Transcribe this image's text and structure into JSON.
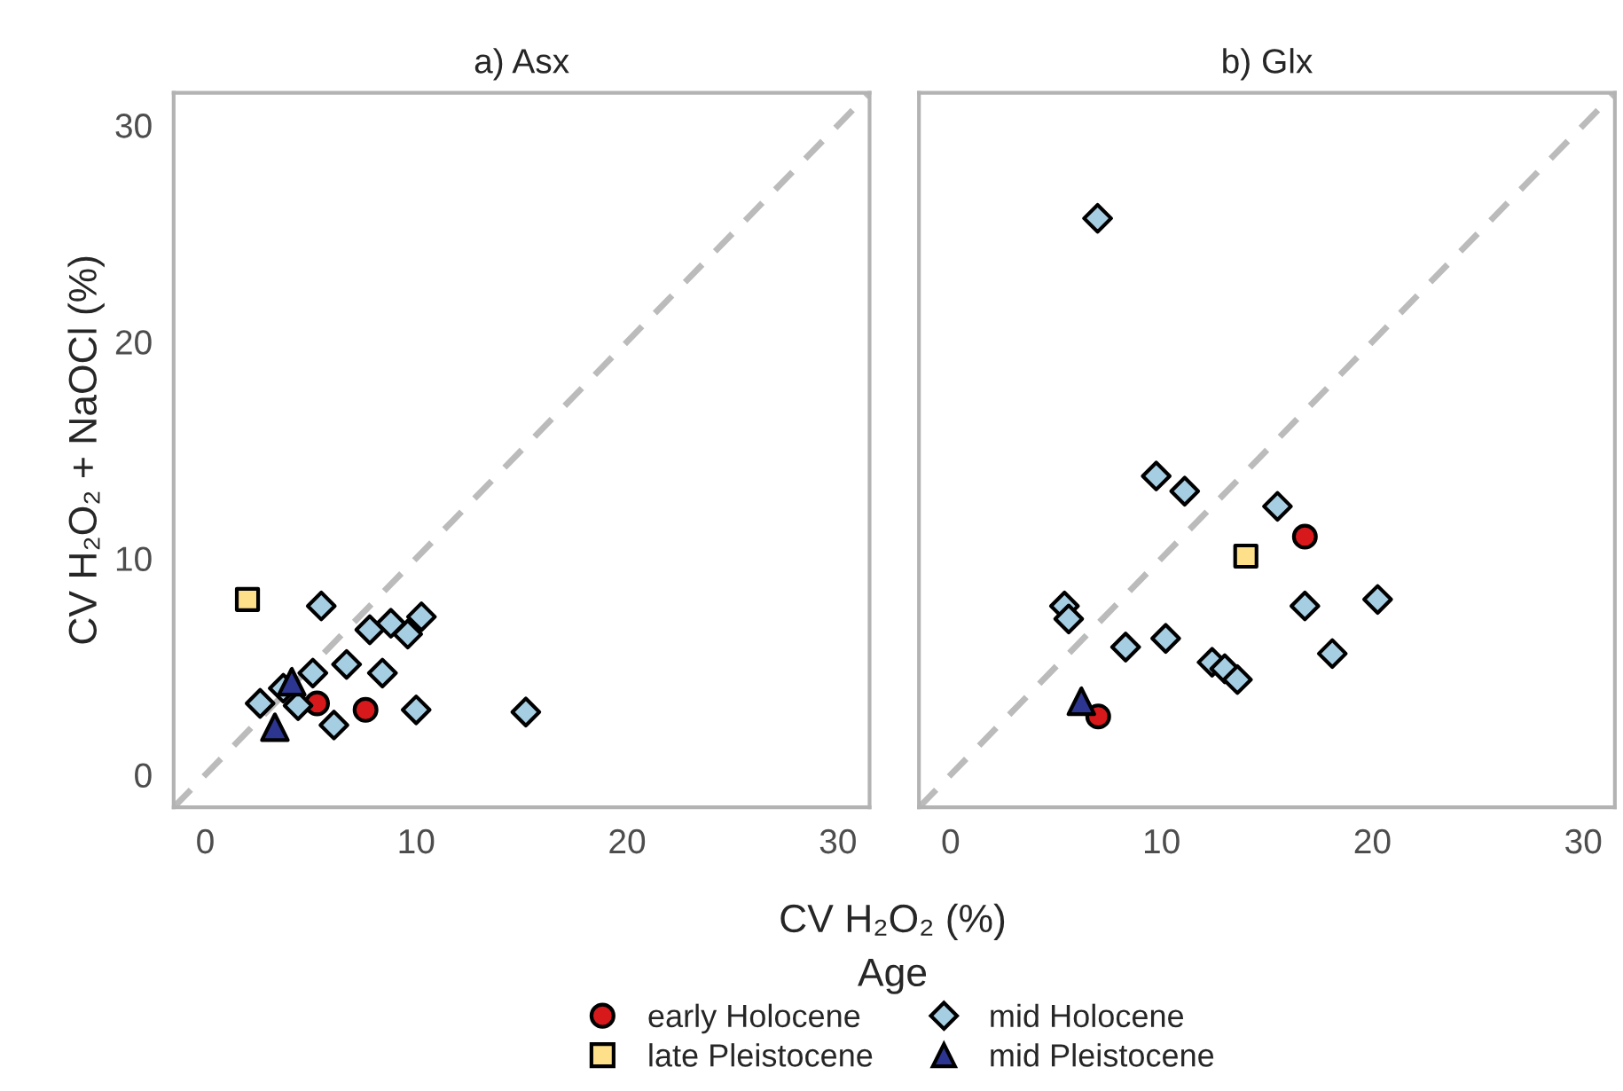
{
  "chart_data": [
    {
      "type": "scatter",
      "title": "a) Asx",
      "xlabel": "CV H₂O₂ (%)",
      "ylabel": "CV H₂O₂ + NaOCl (%)",
      "legend_title": "Age",
      "legend": "bottom",
      "grid": false,
      "xlim": [
        -1.5,
        31.5
      ],
      "ylim": [
        -1.5,
        31.5
      ],
      "xticks": [
        0,
        10,
        20,
        30
      ],
      "yticks": [
        0,
        10,
        20,
        30
      ],
      "series": [
        {
          "type": "line",
          "color": "#bbbbbb",
          "line_style": "dashed",
          "marker": "none",
          "x": [
            -1.5,
            31.5
          ],
          "values": [
            -1.5,
            31.5
          ]
        },
        {
          "name": "early Holocene",
          "color": "#d7191c",
          "marker": "circle",
          "x": [
            5.3,
            7.6
          ],
          "values": [
            3.3,
            3.0
          ]
        },
        {
          "name": "late Pleistocene",
          "color": "#fee08b",
          "marker": "square",
          "x": [
            2.0
          ],
          "values": [
            8.1
          ]
        },
        {
          "name": "mid Holocene",
          "color": "#a6cee3",
          "marker": "diamond",
          "x": [
            5.5,
            7.8,
            8.8,
            9.6,
            10.25,
            6.7,
            8.4,
            5.1,
            2.6,
            3.7,
            4.4,
            6.1,
            10.0,
            15.2
          ],
          "values": [
            7.8,
            6.7,
            7.0,
            6.5,
            7.3,
            5.1,
            4.7,
            4.7,
            3.3,
            4.0,
            3.2,
            2.3,
            3.0,
            2.9
          ]
        },
        {
          "name": "mid Pleistocene",
          "color": "#2c3590",
          "marker": "triangle",
          "x": [
            4.1,
            3.3
          ],
          "values": [
            4.3,
            2.2
          ]
        }
      ]
    },
    {
      "type": "scatter",
      "title": "b) Glx",
      "grid": false,
      "tick_labels": "x",
      "xlim": [
        -1.5,
        31.5
      ],
      "ylim": [
        -1.5,
        31.5
      ],
      "xticks": [
        0,
        10,
        20,
        30
      ],
      "yticks": [
        0,
        10,
        20,
        30
      ],
      "series": [
        {
          "type": "line",
          "color": "#bbbbbb",
          "line_style": "dashed",
          "marker": "none",
          "x": [
            -1.5,
            31.5
          ],
          "values": [
            -1.5,
            31.5
          ]
        },
        {
          "color": "#d7191c",
          "marker": "circle",
          "x": [
            16.8,
            7.0
          ],
          "values": [
            11.0,
            2.7
          ]
        },
        {
          "color": "#fee08b",
          "marker": "square",
          "x": [
            14.0
          ],
          "values": [
            10.1
          ]
        },
        {
          "color": "#a6cee3",
          "marker": "diamond",
          "x": [
            6.97,
            9.75,
            11.1,
            15.5,
            16.8,
            20.25,
            18.1,
            5.4,
            5.6,
            8.3,
            10.2,
            12.4,
            13.0,
            13.6
          ],
          "values": [
            25.7,
            13.8,
            13.1,
            12.4,
            7.8,
            8.1,
            5.6,
            7.8,
            7.2,
            5.9,
            6.3,
            5.2,
            4.9,
            4.4
          ]
        },
        {
          "color": "#2c3590",
          "marker": "triangle",
          "x": [
            6.2
          ],
          "values": [
            3.4
          ]
        }
      ]
    }
  ]
}
